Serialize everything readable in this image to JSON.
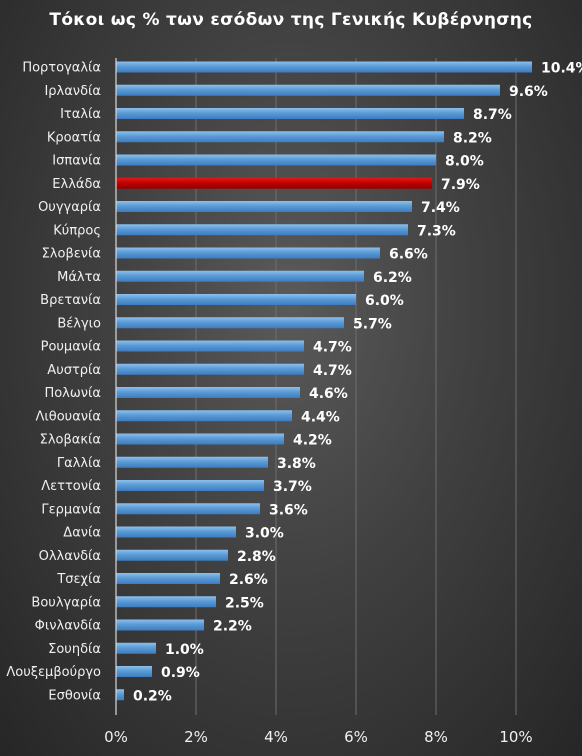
{
  "chart_data": {
    "type": "bar",
    "orientation": "horizontal",
    "title": "Τόκοι ως % των εσόδων της Γενικής Κυβέρνησης",
    "categories": [
      "Πορτογαλία",
      "Ιρλανδία",
      "Ιταλία",
      "Κροατία",
      "Ισπανία",
      "Ελλάδα",
      "Ουγγαρία",
      "Κύπρος",
      "Σλοβενία",
      "Μάλτα",
      "Βρετανία",
      "Βέλγιο",
      "Ρουμανία",
      "Αυστρία",
      "Πολωνία",
      "Λιθουανία",
      "Σλοβακία",
      "Γαλλία",
      "Λεττονία",
      "Γερμανία",
      "Δανία",
      "Ολλανδία",
      "Τσεχία",
      "Βουλγαρία",
      "Φινλανδία",
      "Σουηδία",
      "Λουξεμβούργο",
      "Εσθονία"
    ],
    "values": [
      10.4,
      9.6,
      8.7,
      8.2,
      8.0,
      7.9,
      7.4,
      7.3,
      6.6,
      6.2,
      6.0,
      5.7,
      4.7,
      4.7,
      4.6,
      4.4,
      4.2,
      3.8,
      3.7,
      3.6,
      3.0,
      2.8,
      2.6,
      2.5,
      2.2,
      1.0,
      0.9,
      0.2
    ],
    "data_labels": [
      "10.4%",
      "9.6%",
      "8.7%",
      "8.2%",
      "8.0%",
      "7.9%",
      "7.4%",
      "7.3%",
      "6.6%",
      "6.2%",
      "6.0%",
      "5.7%",
      "4.7%",
      "4.7%",
      "4.6%",
      "4.4%",
      "4.2%",
      "3.8%",
      "3.7%",
      "3.6%",
      "3.0%",
      "2.8%",
      "2.6%",
      "2.5%",
      "2.2%",
      "1.0%",
      "0.9%",
      "0.2%"
    ],
    "xlim": [
      0,
      10
    ],
    "x_ticks": [
      0,
      2,
      4,
      6,
      8,
      10
    ],
    "x_tick_labels": [
      "0%",
      "2%",
      "4%",
      "6%",
      "8%",
      "10%"
    ],
    "grid": "vertical",
    "legend": "none",
    "bar_color": "#5b9bd5",
    "highlight_category": "Ελλάδα",
    "highlight_color": "#c00000"
  }
}
